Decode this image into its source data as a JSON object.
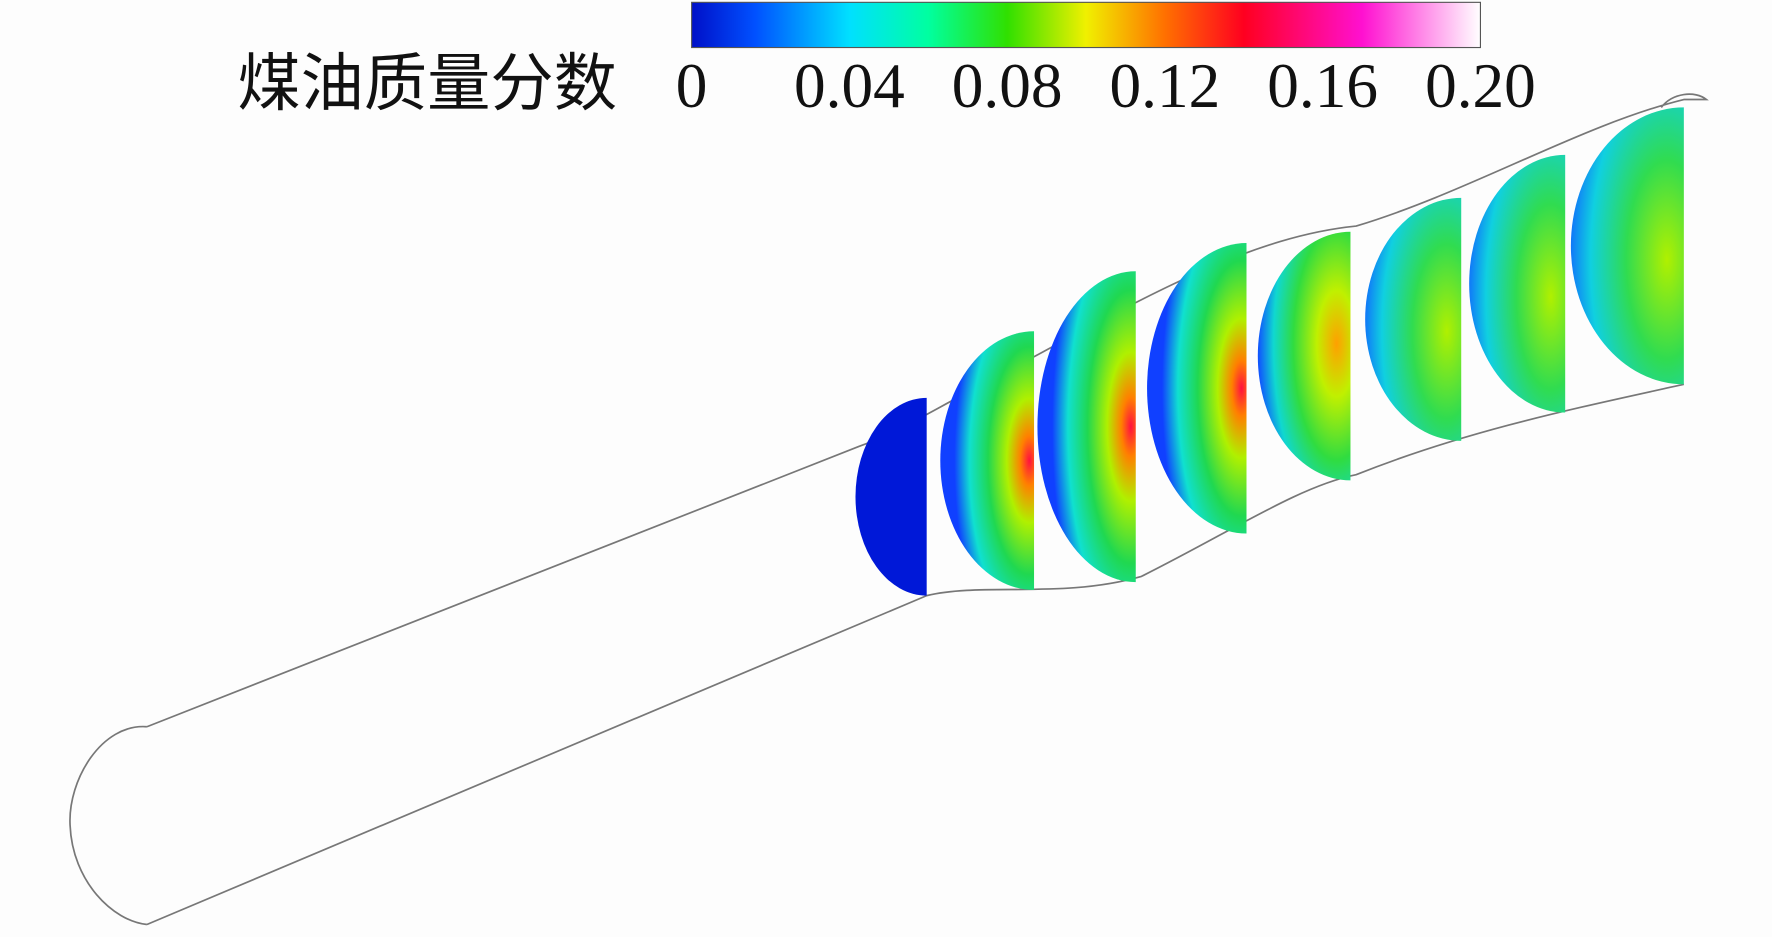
{
  "colorbar": {
    "label": "煤油质量分数",
    "lim": [
      0,
      0.2
    ],
    "ticks": [
      0,
      0.04,
      0.08,
      0.12,
      0.16,
      {
        "value": 0.2,
        "label": "0.20"
      }
    ]
  }
}
